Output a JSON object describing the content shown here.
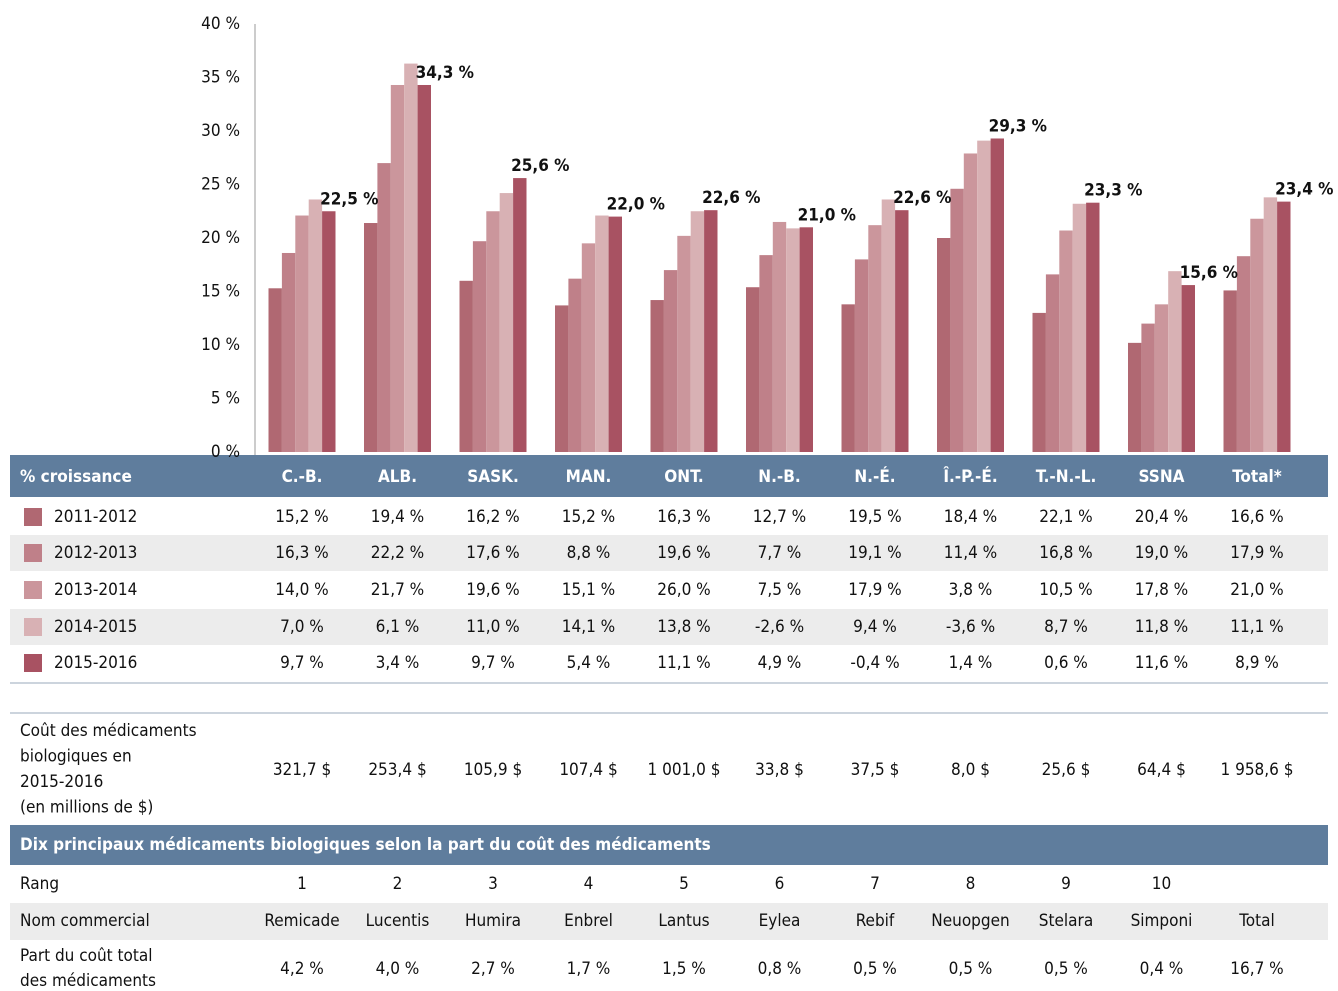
{
  "chart_data": {
    "type": "bar",
    "categories": [
      "C.-B.",
      "ALB.",
      "SASK.",
      "MAN.",
      "ONT.",
      "N.-B.",
      "N.-É.",
      "Î.-P.-É.",
      "T.-N.-L.",
      "SSNA",
      "Total*"
    ],
    "ylim": [
      0,
      40
    ],
    "yticks": [
      {
        "value": 0,
        "label": "0 %"
      },
      {
        "value": 5,
        "label": "5 %"
      },
      {
        "value": 10,
        "label": "10 %"
      },
      {
        "value": 15,
        "label": "15 %"
      },
      {
        "value": 20,
        "label": "20 %"
      },
      {
        "value": 25,
        "label": "25 %"
      },
      {
        "value": 30,
        "label": "30 %"
      },
      {
        "value": 35,
        "label": "35 %"
      },
      {
        "value": 40,
        "label": "40 %"
      }
    ],
    "grid": false,
    "series": [
      {
        "name": "2011-2012",
        "color": "#b06872",
        "values": [
          15.3,
          21.4,
          16.0,
          13.7,
          14.2,
          15.4,
          13.8,
          20.0,
          13.0,
          10.2,
          15.1
        ]
      },
      {
        "name": "2012-2013",
        "color": "#bf8089",
        "values": [
          18.6,
          27.0,
          19.7,
          16.2,
          17.0,
          18.4,
          18.0,
          24.6,
          16.6,
          12.0,
          18.3
        ]
      },
      {
        "name": "2013-2014",
        "color": "#cb969c",
        "values": [
          22.1,
          34.3,
          22.5,
          19.5,
          20.2,
          21.5,
          21.2,
          27.9,
          20.7,
          13.8,
          21.8
        ]
      },
      {
        "name": "2014-2015",
        "color": "#d8b1b4",
        "values": [
          23.6,
          36.3,
          24.2,
          22.1,
          22.5,
          20.9,
          23.6,
          29.1,
          23.2,
          16.9,
          23.8
        ]
      },
      {
        "name": "2015-2016",
        "color": "#a85262",
        "values": [
          22.5,
          34.3,
          25.6,
          22.0,
          22.6,
          21.0,
          22.6,
          29.3,
          23.3,
          15.6,
          23.4
        ],
        "value_labels": [
          "22,5 %",
          "34,3 %",
          "25,6 %",
          "22,0 %",
          "22,6 %",
          "21,0 %",
          "22,6 %",
          "29,3 %",
          "23,3 %",
          "15,6 %",
          "23,4 %"
        ]
      }
    ]
  },
  "table": {
    "header": "% croissance",
    "rows": [
      [
        "15,2 %",
        "19,4 %",
        "16,2 %",
        "15,2 %",
        "16,3 %",
        "12,7 %",
        "19,5 %",
        "18,4 %",
        "22,1 %",
        "20,4 %",
        "16,6 %"
      ],
      [
        "16,3 %",
        "22,2 %",
        "17,6 %",
        "8,8 %",
        "19,6 %",
        "7,7 %",
        "19,1 %",
        "11,4 %",
        "16,8 %",
        "19,0 %",
        "17,9 %"
      ],
      [
        "14,0 %",
        "21,7 %",
        "19,6 %",
        "15,1 %",
        "26,0 %",
        "7,5 %",
        "17,9 %",
        "3,8 %",
        "10,5 %",
        "17,8 %",
        "21,0 %"
      ],
      [
        "7,0 %",
        "6,1 %",
        "11,0 %",
        "14,1 %",
        "13,8 %",
        "-2,6 %",
        "9,4 %",
        "-3,6 %",
        "8,7 %",
        "11,8 %",
        "11,1 %"
      ],
      [
        "9,7 %",
        "3,4 %",
        "9,7 %",
        "5,4 %",
        "11,1 %",
        "4,9 %",
        "-0,4 %",
        "1,4 %",
        "0,6 %",
        "11,6 %",
        "8,9 %"
      ]
    ]
  },
  "cost": {
    "label": [
      "Coût des médicaments",
      "biologiques en",
      "2015-2016",
      "(en millions de $)"
    ],
    "values": [
      "321,7 $",
      "253,4 $",
      "105,9 $",
      "107,4 $",
      "1 001,0 $",
      "33,8 $",
      "37,5 $",
      "8,0 $",
      "25,6 $",
      "64,4 $",
      "1 958,6 $"
    ]
  },
  "top_ten": {
    "title": "Dix principaux médicaments biologiques selon la part du coût des médicaments",
    "rank_label": "Rang",
    "ranks": [
      "1",
      "2",
      "3",
      "4",
      "5",
      "6",
      "7",
      "8",
      "9",
      "10"
    ],
    "name_label": "Nom commercial",
    "names": [
      "Remicade",
      "Lucentis",
      "Humira",
      "Enbrel",
      "Lantus",
      "Eylea",
      "Rebif",
      "Neuopgen",
      "Stelara",
      "Simponi",
      "Total"
    ],
    "share_label": [
      "Part du coût total",
      "des médicaments"
    ],
    "shares": [
      "4,2 %",
      "4,0 %",
      "2,7 %",
      "1,7 %",
      "1,5 %",
      "0,8 %",
      "0,5 %",
      "0,5 %",
      "0,5 %",
      "0,4 %",
      "16,7 %"
    ]
  }
}
